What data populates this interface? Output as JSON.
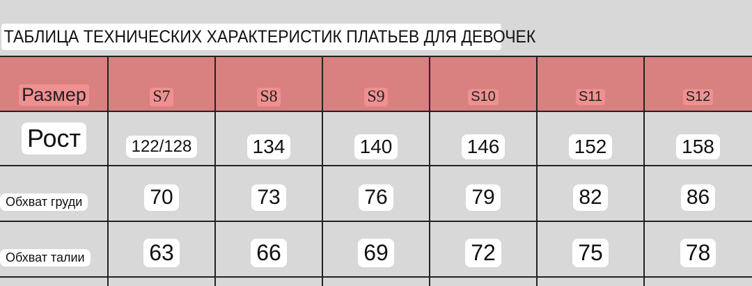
{
  "title": "ТАБЛИЦА ТЕХНИЧЕСКИХ ХАРАКТЕРИСТИК ПЛАТЬЕВ ДЛЯ ДЕВОЧЕК",
  "colors": {
    "header_bg": "#d98080",
    "header_badge": "#f09090",
    "background": "#d8d8d8"
  },
  "table": {
    "header": {
      "label": "Размер",
      "sizes": [
        "S7",
        "S8",
        "S9",
        "S10",
        "S11",
        "S12"
      ]
    },
    "rows": [
      {
        "label": "Рост",
        "values": [
          "122/128",
          "134",
          "140",
          "146",
          "152",
          "158"
        ]
      },
      {
        "label": "Обхват груди",
        "values": [
          "70",
          "73",
          "76",
          "79",
          "82",
          "86"
        ]
      },
      {
        "label": "Обхват талии",
        "values": [
          "63",
          "66",
          "69",
          "72",
          "75",
          "78"
        ]
      }
    ]
  }
}
